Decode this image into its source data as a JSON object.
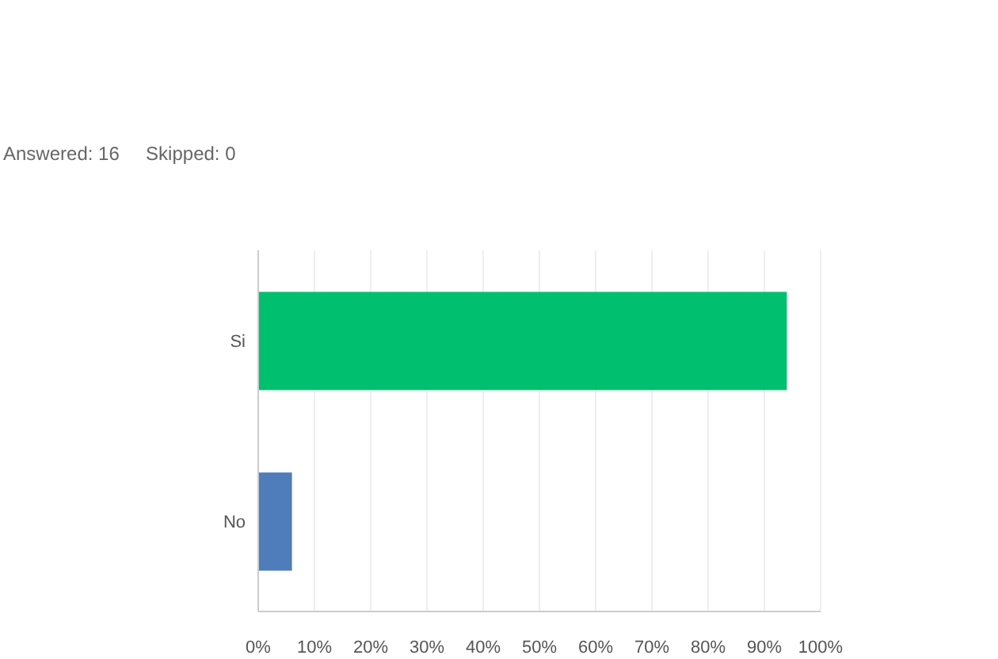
{
  "chart_data": {
    "type": "bar",
    "orientation": "horizontal",
    "categories": [
      "Si",
      "No"
    ],
    "values": [
      94,
      6
    ],
    "colors": [
      "#00bf6f",
      "#4f7cba"
    ],
    "xlim": [
      0,
      100
    ],
    "xticks": [
      {
        "value": 0,
        "label": "0%"
      },
      {
        "value": 10,
        "label": "10%"
      },
      {
        "value": 20,
        "label": "20%"
      },
      {
        "value": 30,
        "label": "30%"
      },
      {
        "value": 40,
        "label": "40%"
      },
      {
        "value": 50,
        "label": "50%"
      },
      {
        "value": 60,
        "label": "60%"
      },
      {
        "value": 70,
        "label": "70%"
      },
      {
        "value": 80,
        "label": "80%"
      },
      {
        "value": 90,
        "label": "90%"
      },
      {
        "value": 100,
        "label": "100%"
      }
    ],
    "grid": "x",
    "annotations": [
      "Answered: 16     Skipped: 0"
    ]
  }
}
